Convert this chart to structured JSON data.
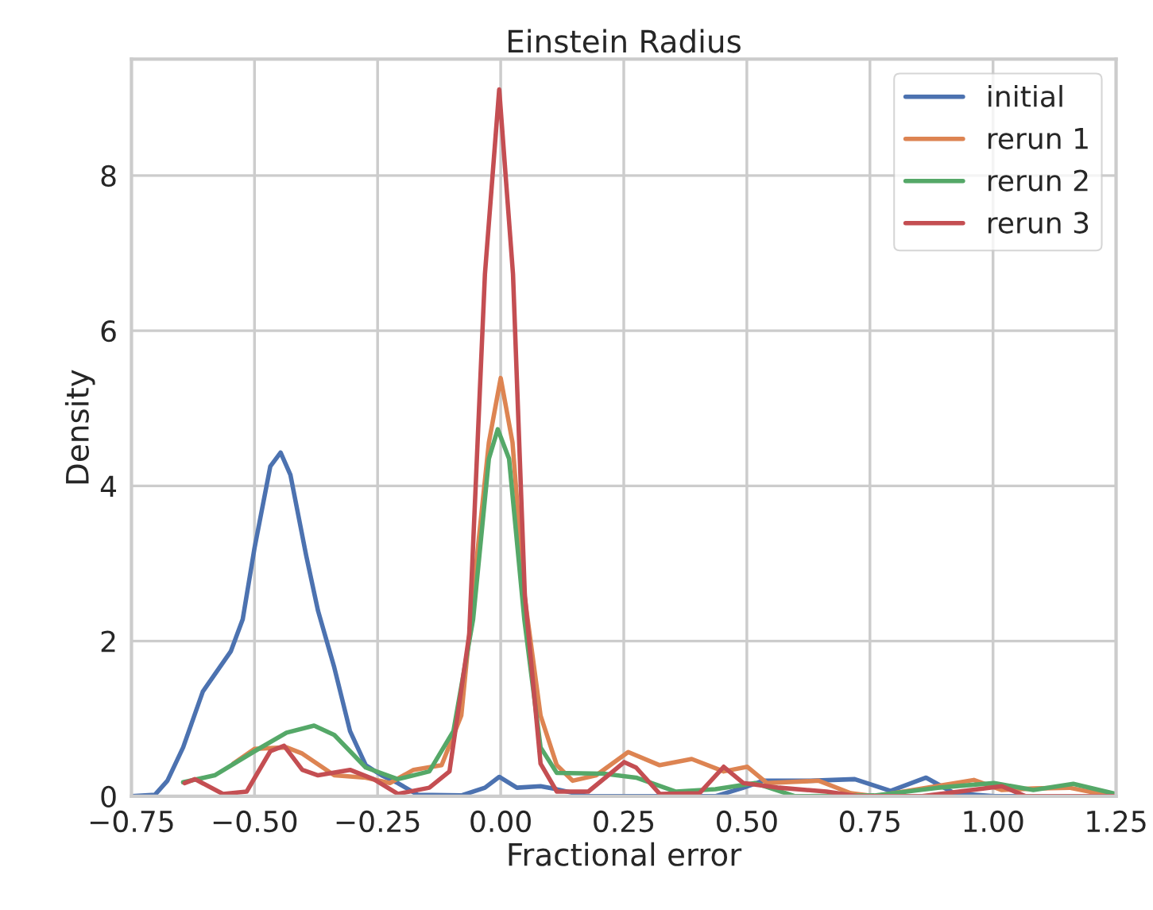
{
  "chart_data": {
    "type": "line",
    "title": "Einstein Radius",
    "xlabel": "Fractional error",
    "ylabel": "Density",
    "xlim": [
      -0.75,
      1.25
    ],
    "xticks": [
      {
        "value": -0.75,
        "label": "−0.75"
      },
      {
        "value": -0.5,
        "label": "−0.50"
      },
      {
        "value": -0.25,
        "label": "−0.25"
      },
      {
        "value": 0,
        "label": "0.00"
      },
      {
        "value": 0.25,
        "label": "0.25"
      },
      {
        "value": 0.5,
        "label": "0.50"
      },
      {
        "value": 0.75,
        "label": "0.75"
      },
      {
        "value": 1.0,
        "label": "1.00"
      },
      {
        "value": 1.25,
        "label": "1.25"
      }
    ],
    "ylim": [
      0,
      9.5
    ],
    "yticks": [
      0,
      2,
      4,
      6,
      8
    ],
    "grid": true,
    "legend": "top right",
    "series": [
      {
        "name": "initial",
        "color": "#4c72b0",
        "x": [
          -0.75,
          -0.702,
          -0.677,
          -0.645,
          -0.605,
          -0.548,
          -0.524,
          -0.5,
          -0.468,
          -0.447,
          -0.427,
          -0.395,
          -0.371,
          -0.338,
          -0.306,
          -0.274,
          -0.242,
          -0.209,
          -0.169,
          -0.08,
          -0.032,
          -0.003,
          0.033,
          0.081,
          0.114,
          0.178,
          0.436,
          0.493,
          0.533,
          0.63,
          0.719,
          0.792,
          0.864,
          0.921,
          1.002,
          1.25
        ],
        "values": [
          0,
          0.02,
          0.2,
          0.63,
          1.35,
          1.87,
          2.28,
          3.2,
          4.25,
          4.43,
          4.14,
          3.1,
          2.39,
          1.66,
          0.84,
          0.4,
          0.27,
          0.17,
          0.02,
          0.01,
          0.11,
          0.25,
          0.11,
          0.13,
          0.09,
          0,
          0,
          0.11,
          0.2,
          0.2,
          0.22,
          0.07,
          0.24,
          0.04,
          0,
          0
        ]
      },
      {
        "name": "rerun 1",
        "color": "#dd8452",
        "x": [
          -0.543,
          -0.5,
          -0.435,
          -0.403,
          -0.338,
          -0.274,
          -0.225,
          -0.177,
          -0.12,
          -0.08,
          -0.048,
          -0.024,
          0.0,
          0.024,
          0.048,
          0.081,
          0.114,
          0.146,
          0.194,
          0.259,
          0.323,
          0.388,
          0.453,
          0.501,
          0.541,
          0.646,
          0.711,
          0.759,
          0.961,
          1.018,
          1.082,
          1.155,
          1.243
        ],
        "values": [
          0.42,
          0.61,
          0.63,
          0.55,
          0.27,
          0.24,
          0.17,
          0.34,
          0.4,
          1.04,
          3.1,
          4.56,
          5.39,
          4.56,
          2.6,
          1.04,
          0.4,
          0.2,
          0.27,
          0.57,
          0.4,
          0.48,
          0.32,
          0.38,
          0.17,
          0.2,
          0.04,
          0,
          0.21,
          0.08,
          0.1,
          0.11,
          0
        ]
      },
      {
        "name": "rerun 2",
        "color": "#55a868",
        "x": [
          -0.645,
          -0.581,
          -0.5,
          -0.435,
          -0.379,
          -0.338,
          -0.274,
          -0.209,
          -0.145,
          -0.096,
          -0.056,
          -0.024,
          -0.006,
          0.017,
          0.048,
          0.081,
          0.114,
          0.21,
          0.275,
          0.356,
          0.436,
          0.517,
          0.598,
          0.759,
          0.888,
          1.002,
          1.082,
          1.163,
          1.25
        ],
        "values": [
          0.18,
          0.27,
          0.58,
          0.82,
          0.91,
          0.79,
          0.37,
          0.22,
          0.32,
          0.84,
          2.28,
          4.35,
          4.73,
          4.35,
          2.28,
          0.63,
          0.3,
          0.29,
          0.24,
          0.06,
          0.09,
          0.17,
          0,
          0.01,
          0.11,
          0.17,
          0.08,
          0.16,
          0.03
        ]
      },
      {
        "name": "rerun 3",
        "color": "#c44e52",
        "x": [
          -0.642,
          -0.621,
          -0.564,
          -0.516,
          -0.468,
          -0.44,
          -0.403,
          -0.371,
          -0.306,
          -0.258,
          -0.209,
          -0.145,
          -0.104,
          -0.064,
          -0.032,
          -0.003,
          0.025,
          0.049,
          0.081,
          0.114,
          0.178,
          0.251,
          0.275,
          0.323,
          0.404,
          0.453,
          0.493,
          0.566,
          0.662,
          0.727,
          0.856,
          1.018,
          1.066,
          1.25
        ],
        "values": [
          0.17,
          0.22,
          0.03,
          0.06,
          0.58,
          0.65,
          0.34,
          0.27,
          0.34,
          0.22,
          0.03,
          0.11,
          0.32,
          2.08,
          6.73,
          9.11,
          6.73,
          2.6,
          0.42,
          0.06,
          0.06,
          0.44,
          0.37,
          0.03,
          0.04,
          0.38,
          0.17,
          0.11,
          0.06,
          0,
          0,
          0.13,
          0,
          0
        ]
      }
    ]
  }
}
